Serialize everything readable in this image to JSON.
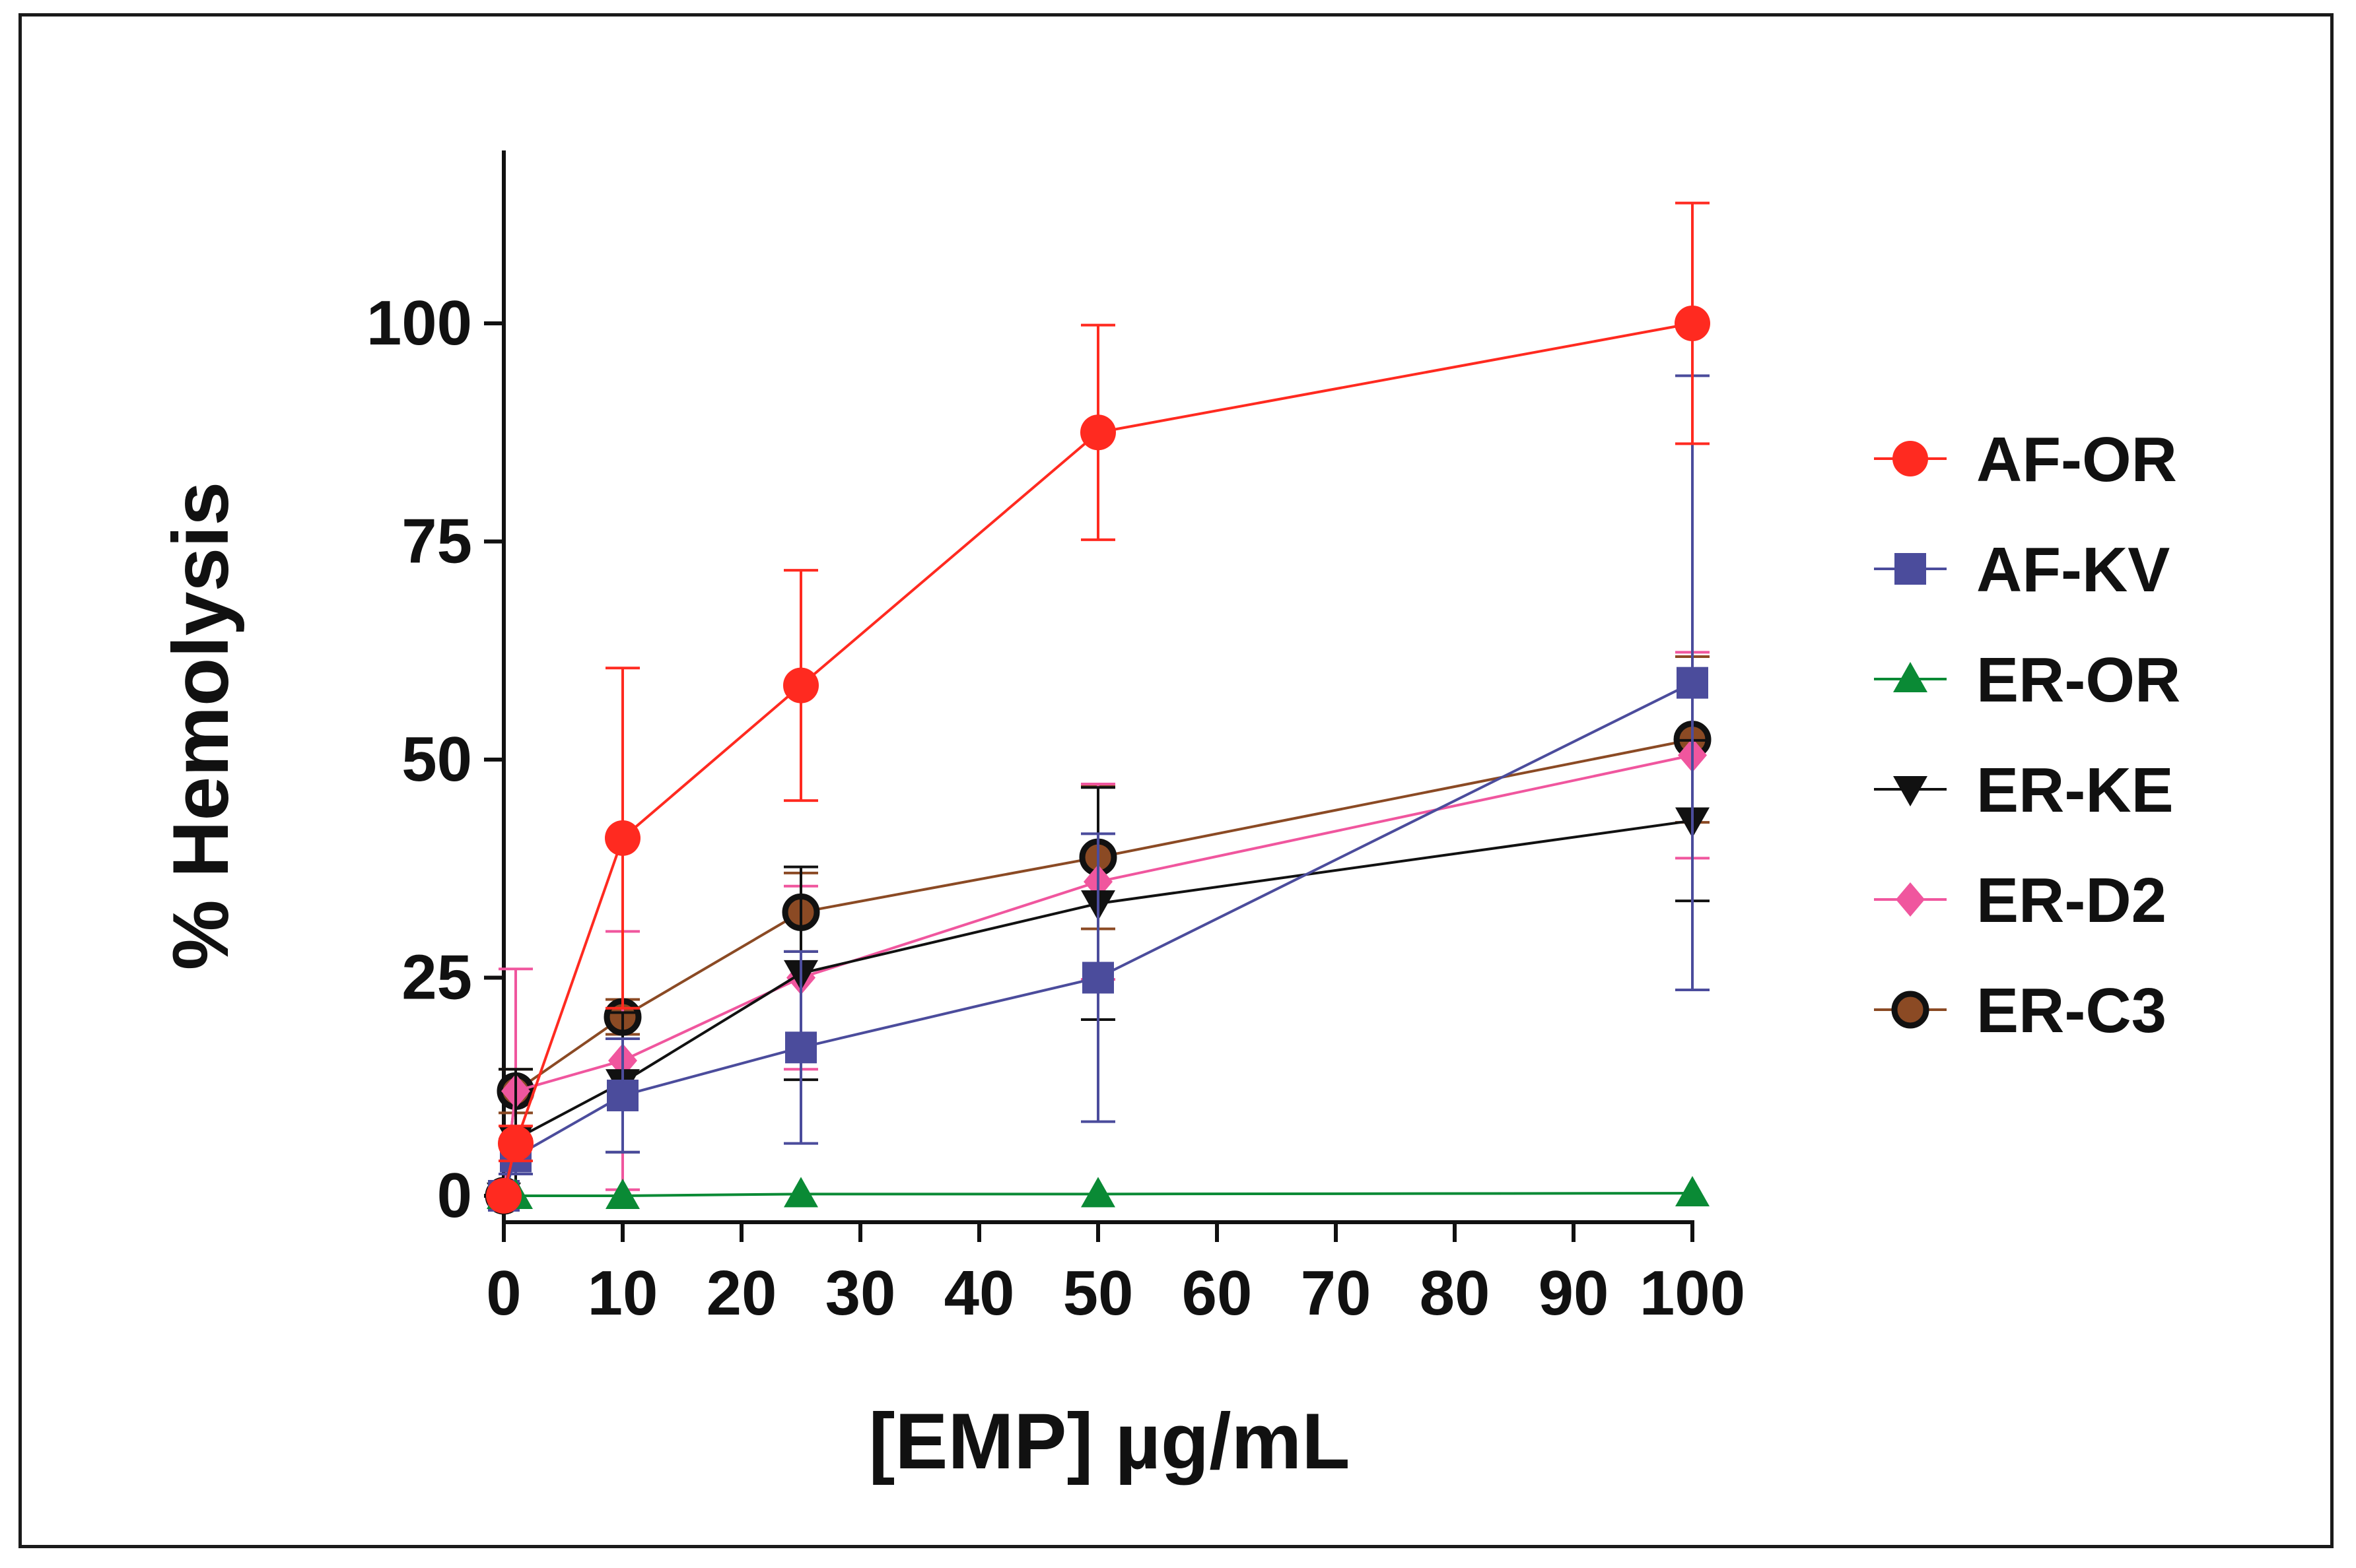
{
  "chart_data": {
    "type": "line",
    "title": "",
    "xlabel": "[EMP] µg/mL",
    "ylabel": "% Hemolysis",
    "xlim": [
      0,
      100
    ],
    "ylim": [
      0,
      120
    ],
    "xticks": [
      0,
      10,
      20,
      30,
      40,
      50,
      60,
      70,
      80,
      90,
      100
    ],
    "yticks": [
      0,
      25,
      50,
      75,
      100
    ],
    "x": [
      0,
      1,
      10,
      25,
      50,
      100
    ],
    "legend_position": "right",
    "series": [
      {
        "name": "AF-OR",
        "color": "#ff2a20",
        "marker": "circle",
        "values": [
          0,
          6,
          41,
          58.5,
          87.5,
          100
        ],
        "errors": [
          0,
          2,
          19.5,
          13.2,
          12.3,
          13.8
        ]
      },
      {
        "name": "AF-KV",
        "color": "#4b4c9c",
        "marker": "square",
        "values": [
          0,
          4.5,
          11.5,
          17,
          25,
          58.8
        ],
        "errors": [
          0,
          2,
          6.5,
          11,
          16.5,
          35.2
        ]
      },
      {
        "name": "ER-OR",
        "color": "#0a8a35",
        "marker": "triangle-up",
        "values": [
          0,
          0,
          0,
          0.2,
          0.2,
          0.3
        ],
        "errors": [
          0,
          0,
          0,
          0,
          0,
          0
        ]
      },
      {
        "name": "ER-KE",
        "color": "#111111",
        "marker": "triangle-down",
        "values": [
          0,
          6.5,
          13,
          25.5,
          33.5,
          43
        ],
        "errors": [
          0,
          8,
          8,
          12.2,
          13.3,
          9.2
        ]
      },
      {
        "name": "ER-D2",
        "color": "#f0569e",
        "marker": "diamond",
        "values": [
          0,
          12,
          15.5,
          25,
          36,
          50.5
        ],
        "errors": [
          0,
          14,
          14.8,
          10.5,
          11.2,
          11.8
        ]
      },
      {
        "name": "ER-C3",
        "color": "#8b4a24",
        "marker": "circle-outline",
        "values": [
          0,
          12,
          20.5,
          32.5,
          38.8,
          52.3
        ],
        "errors": [
          0,
          2.5,
          2,
          4.5,
          8.2,
          9.5
        ]
      }
    ]
  }
}
